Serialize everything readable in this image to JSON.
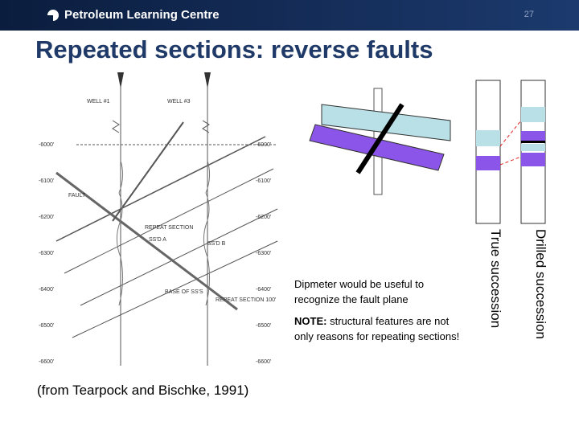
{
  "header": {
    "brand": "Petroleum Learning Centre",
    "page_number": "27"
  },
  "title": "Repeated sections: reverse faults",
  "figure": {
    "wells": [
      "WELL #1",
      "WELL #3"
    ],
    "left_depths": [
      "-6000'",
      "-6100'",
      "-6200'",
      "-6300'",
      "-6400'",
      "-6500'",
      "-6600'"
    ],
    "right_depths": [
      "-6000'",
      "-6100'",
      "-6200'",
      "-6300'",
      "-6400'",
      "-6500'",
      "-6600'"
    ],
    "labels": [
      "REPEAT SECTION",
      "FAULT",
      "SS'D A",
      "SS'D B",
      "BASE OF SS'S",
      "REPEAT SECTION 100'"
    ],
    "caption": "(from Tearpock and Bischke, 1991)"
  },
  "notes": {
    "dipmeter": "Dipmeter would be useful to recognize the fault plane",
    "note_label": "NOTE:",
    "note_text": "structural features are not only reasons for repeating sections!"
  },
  "columns": {
    "true": "True succession",
    "drilled": "Drilled succession"
  }
}
